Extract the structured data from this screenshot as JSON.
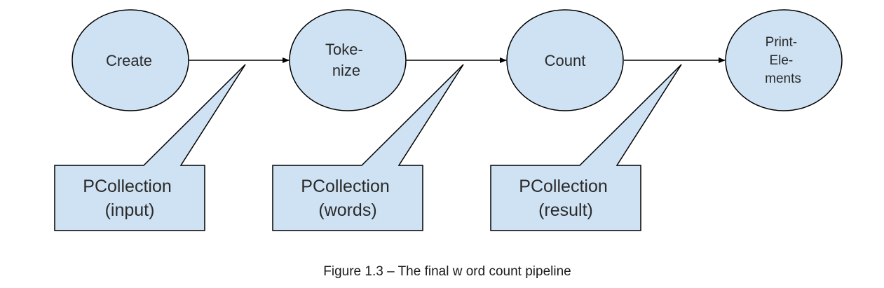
{
  "colors": {
    "node_fill": "#cfe2f3",
    "stroke": "#000000"
  },
  "nodes": [
    {
      "id": "create",
      "lines": [
        "Create"
      ]
    },
    {
      "id": "tokenize",
      "lines": [
        "Toke-",
        "nize"
      ]
    },
    {
      "id": "count",
      "lines": [
        "Count"
      ]
    },
    {
      "id": "print-elements",
      "lines": [
        "Print-",
        "Ele-",
        "ments"
      ]
    }
  ],
  "callouts": [
    {
      "id": "input",
      "lines": [
        "PCollection",
        "(input)"
      ]
    },
    {
      "id": "words",
      "lines": [
        "PCollection",
        "(words)"
      ]
    },
    {
      "id": "result",
      "lines": [
        "PCollection",
        "(result)"
      ]
    }
  ],
  "caption": "Figure 1.3 – The final w ord count pipeline"
}
